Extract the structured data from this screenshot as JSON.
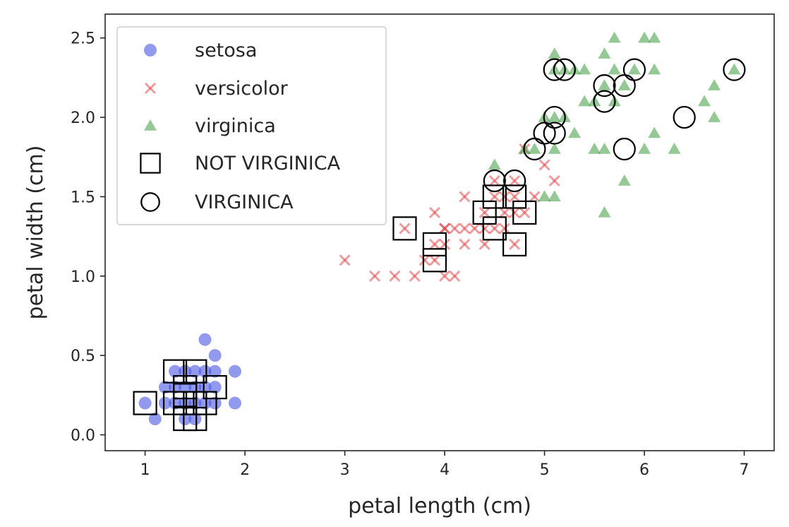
{
  "chart_data": {
    "type": "scatter",
    "xlabel": "petal length (cm)",
    "ylabel": "petal width (cm)",
    "xlim": [
      0.6,
      7.3
    ],
    "ylim": [
      -0.1,
      2.65
    ],
    "xticks": [
      1,
      2,
      3,
      4,
      5,
      6,
      7
    ],
    "yticks": [
      0.0,
      0.5,
      1.0,
      1.5,
      2.0,
      2.5
    ],
    "xtick_labels": [
      "1",
      "2",
      "3",
      "4",
      "5",
      "6",
      "7"
    ],
    "ytick_labels": [
      "0.0",
      "0.5",
      "1.0",
      "1.5",
      "2.0",
      "2.5"
    ],
    "grid": false,
    "legend_position": "top-left",
    "series": [
      {
        "name": "setosa",
        "marker": "circle",
        "color": "#4a56e2",
        "points": [
          [
            1.0,
            0.2
          ],
          [
            1.1,
            0.1
          ],
          [
            1.2,
            0.2
          ],
          [
            1.3,
            0.2
          ],
          [
            1.3,
            0.3
          ],
          [
            1.3,
            0.4
          ],
          [
            1.4,
            0.1
          ],
          [
            1.4,
            0.2
          ],
          [
            1.4,
            0.3
          ],
          [
            1.5,
            0.1
          ],
          [
            1.5,
            0.2
          ],
          [
            1.5,
            0.3
          ],
          [
            1.5,
            0.4
          ],
          [
            1.6,
            0.2
          ],
          [
            1.6,
            0.4
          ],
          [
            1.6,
            0.6
          ],
          [
            1.7,
            0.2
          ],
          [
            1.7,
            0.3
          ],
          [
            1.7,
            0.4
          ],
          [
            1.7,
            0.5
          ],
          [
            1.9,
            0.2
          ],
          [
            1.9,
            0.4
          ],
          [
            1.2,
            0.3
          ],
          [
            1.4,
            0.4
          ],
          [
            1.6,
            0.3
          ]
        ]
      },
      {
        "name": "versicolor",
        "marker": "x",
        "color": "#e0393e",
        "points": [
          [
            3.0,
            1.1
          ],
          [
            3.3,
            1.0
          ],
          [
            3.5,
            1.0
          ],
          [
            3.6,
            1.3
          ],
          [
            3.7,
            1.0
          ],
          [
            3.8,
            1.1
          ],
          [
            3.9,
            1.1
          ],
          [
            3.9,
            1.2
          ],
          [
            3.9,
            1.4
          ],
          [
            4.0,
            1.0
          ],
          [
            4.0,
            1.2
          ],
          [
            4.0,
            1.3
          ],
          [
            4.1,
            1.0
          ],
          [
            4.1,
            1.3
          ],
          [
            4.2,
            1.2
          ],
          [
            4.2,
            1.3
          ],
          [
            4.2,
            1.5
          ],
          [
            4.3,
            1.3
          ],
          [
            4.4,
            1.2
          ],
          [
            4.4,
            1.3
          ],
          [
            4.4,
            1.4
          ],
          [
            4.5,
            1.3
          ],
          [
            4.5,
            1.5
          ],
          [
            4.6,
            1.3
          ],
          [
            4.6,
            1.4
          ],
          [
            4.6,
            1.5
          ],
          [
            4.7,
            1.2
          ],
          [
            4.7,
            1.4
          ],
          [
            4.7,
            1.5
          ],
          [
            4.8,
            1.4
          ],
          [
            4.8,
            1.8
          ],
          [
            4.9,
            1.5
          ],
          [
            5.0,
            1.7
          ],
          [
            5.1,
            1.6
          ],
          [
            4.5,
            1.6
          ],
          [
            4.7,
            1.6
          ],
          [
            4.0,
            1.3
          ]
        ]
      },
      {
        "name": "virginica",
        "marker": "triangle",
        "color": "#3c9b3c",
        "points": [
          [
            4.5,
            1.7
          ],
          [
            4.8,
            1.8
          ],
          [
            4.9,
            1.8
          ],
          [
            5.0,
            1.5
          ],
          [
            5.0,
            2.0
          ],
          [
            5.1,
            1.5
          ],
          [
            5.1,
            1.8
          ],
          [
            5.1,
            2.0
          ],
          [
            5.1,
            2.3
          ],
          [
            5.1,
            2.4
          ],
          [
            5.2,
            2.0
          ],
          [
            5.2,
            2.3
          ],
          [
            5.3,
            1.9
          ],
          [
            5.3,
            2.3
          ],
          [
            5.4,
            2.1
          ],
          [
            5.4,
            2.3
          ],
          [
            5.5,
            1.8
          ],
          [
            5.5,
            2.1
          ],
          [
            5.6,
            1.4
          ],
          [
            5.6,
            1.8
          ],
          [
            5.6,
            2.2
          ],
          [
            5.6,
            2.4
          ],
          [
            5.7,
            2.1
          ],
          [
            5.7,
            2.3
          ],
          [
            5.7,
            2.5
          ],
          [
            5.8,
            1.6
          ],
          [
            5.8,
            2.2
          ],
          [
            5.9,
            2.3
          ],
          [
            6.0,
            1.8
          ],
          [
            6.0,
            2.5
          ],
          [
            6.1,
            1.9
          ],
          [
            6.1,
            2.3
          ],
          [
            6.1,
            2.5
          ],
          [
            6.3,
            1.8
          ],
          [
            6.6,
            2.1
          ],
          [
            6.7,
            2.0
          ],
          [
            6.7,
            2.2
          ],
          [
            6.9,
            2.3
          ]
        ]
      },
      {
        "name": "NOT VIRGINICA",
        "marker": "square",
        "color": "#000000",
        "points": [
          [
            1.0,
            0.2
          ],
          [
            1.3,
            0.4
          ],
          [
            1.3,
            0.2
          ],
          [
            1.4,
            0.3
          ],
          [
            1.4,
            0.2
          ],
          [
            1.4,
            0.1
          ],
          [
            1.5,
            0.4
          ],
          [
            1.5,
            0.2
          ],
          [
            1.6,
            0.2
          ],
          [
            1.7,
            0.3
          ],
          [
            1.5,
            0.1
          ],
          [
            1.4,
            0.25
          ],
          [
            3.6,
            1.3
          ],
          [
            3.9,
            1.2
          ],
          [
            3.9,
            1.1
          ],
          [
            4.4,
            1.4
          ],
          [
            4.5,
            1.3
          ],
          [
            4.5,
            1.5
          ],
          [
            4.7,
            1.5
          ],
          [
            4.8,
            1.4
          ],
          [
            4.7,
            1.2
          ]
        ]
      },
      {
        "name": "VIRGINICA",
        "marker": "circle-open",
        "color": "#000000",
        "points": [
          [
            4.5,
            1.6
          ],
          [
            4.7,
            1.6
          ],
          [
            4.9,
            1.8
          ],
          [
            5.0,
            1.9
          ],
          [
            5.1,
            1.9
          ],
          [
            5.1,
            2.0
          ],
          [
            5.1,
            2.3
          ],
          [
            5.2,
            2.3
          ],
          [
            5.6,
            2.1
          ],
          [
            5.6,
            2.2
          ],
          [
            5.8,
            1.8
          ],
          [
            5.8,
            2.2
          ],
          [
            5.9,
            2.3
          ],
          [
            6.4,
            2.0
          ],
          [
            6.9,
            2.3
          ]
        ]
      }
    ]
  }
}
